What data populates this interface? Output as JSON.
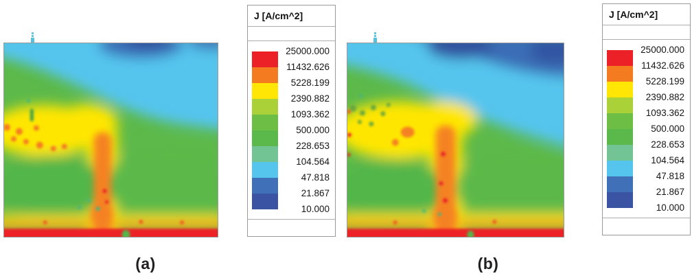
{
  "figure": {
    "type": "simulation-current-density-maps",
    "background": "#ffffff",
    "legend": {
      "title": "J [A/cm^2]",
      "levels": [
        "25000.000",
        "11432.626",
        "5228.199",
        "2390.882",
        "1093.362",
        "500.000",
        "228.653",
        "104.564",
        "47.818",
        "21.867",
        "10.000"
      ],
      "colors": [
        "#ec2127",
        "#f57b20",
        "#ffe604",
        "#abd138",
        "#6cbe45",
        "#5bb84b",
        "#72c495",
        "#55c5ee",
        "#4070b8",
        "#3a53a3"
      ]
    },
    "panels": [
      {
        "caption": "(a)"
      },
      {
        "caption": "(b)"
      }
    ],
    "icons": {
      "axis_marker": "mini-axis-marker"
    }
  },
  "chart_data": [
    {
      "type": "heatmap",
      "panel": "(a)",
      "title": "J [A/cm^2]",
      "quantity": "current density J",
      "units": "A/cm^2",
      "scale": "logarithmic-discrete",
      "colorbar_levels": [
        25000.0,
        11432.626,
        5228.199,
        2390.882,
        1093.362,
        500.0,
        228.653,
        104.564,
        47.818,
        21.867,
        10.0
      ],
      "colorbar_colors": [
        "#ec2127",
        "#f57b20",
        "#ffe604",
        "#abd138",
        "#6cbe45",
        "#5bb84b",
        "#72c495",
        "#55c5ee",
        "#4070b8",
        "#3a53a3"
      ],
      "legend_position": "right",
      "regions": [
        {
          "area": "bottom edge strip (full width)",
          "approx_value": "11000-25000 (red)"
        },
        {
          "area": "vertical channel left of center, hooked top, reaching bottom strip",
          "approx_value": "5000-11000 core (orange), 2400-5200 fringe (yellow)"
        },
        {
          "area": "horizontal band on left at mid height with orange spots",
          "approx_value": "2400-5200 (yellow)"
        },
        {
          "area": "central and lower field",
          "approx_value": "230-1100 (green)"
        },
        {
          "area": "upper band, deeper on right side",
          "approx_value": "48-105 (cyan)"
        },
        {
          "area": "patches at top center and top right corner",
          "approx_value": "10-48 (blue)"
        }
      ]
    },
    {
      "type": "heatmap",
      "panel": "(b)",
      "title": "J [A/cm^2]",
      "quantity": "current density J",
      "units": "A/cm^2",
      "scale": "logarithmic-discrete",
      "colorbar_levels": [
        25000.0,
        11432.626,
        5228.199,
        2390.882,
        1093.362,
        500.0,
        228.653,
        104.564,
        47.818,
        21.867,
        10.0
      ],
      "colorbar_colors": [
        "#ec2127",
        "#f57b20",
        "#ffe604",
        "#abd138",
        "#6cbe45",
        "#5bb84b",
        "#72c495",
        "#55c5ee",
        "#4070b8",
        "#3a53a3"
      ],
      "legend_position": "right",
      "regions": [
        {
          "area": "bottom edge strip (full width)",
          "approx_value": "11000-25000 (red)"
        },
        {
          "area": "vertical channel left of center with red specks inside",
          "approx_value": "5000-11400 core (orange), 2400-5200 fringe (yellow)"
        },
        {
          "area": "wide left band with dark-green mottling and red specks at left edge",
          "approx_value": "2400-5200 (yellow)"
        },
        {
          "area": "central and lower field",
          "approx_value": "230-1100 (green)"
        },
        {
          "area": "upper band, deeper on right side",
          "approx_value": "48-105 (cyan)"
        },
        {
          "area": "large region along top-right half of top edge",
          "approx_value": "10-48 (blue), larger than panel (a)"
        }
      ]
    }
  ]
}
